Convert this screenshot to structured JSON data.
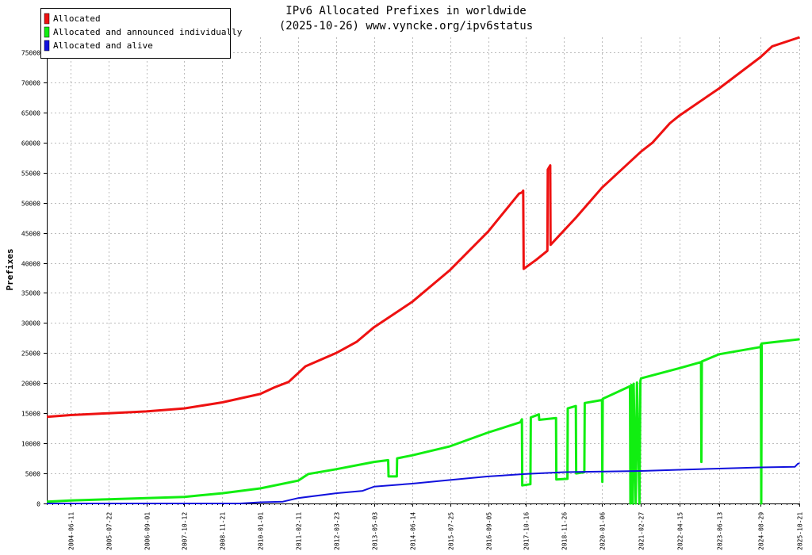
{
  "chart_data": {
    "type": "line",
    "title": "IPv6 Allocated Prefixes in worldwide",
    "subtitle": "(2025-10-26) www.vyncke.org/ipv6status",
    "xlabel": "",
    "ylabel": "Prefixes",
    "ylim": [
      0,
      77500
    ],
    "xlim": [
      "2003-10-01",
      "2025-10-26"
    ],
    "grid": true,
    "legend_position": "top-left",
    "y_ticks": [
      0,
      5000,
      10000,
      15000,
      20000,
      25000,
      30000,
      35000,
      40000,
      45000,
      50000,
      55000,
      60000,
      65000,
      70000,
      75000
    ],
    "x_ticks": [
      "2004-06-11",
      "2005-07-22",
      "2006-09-01",
      "2007-10-12",
      "2008-11-21",
      "2010-01-01",
      "2011-02-11",
      "2012-03-23",
      "2013-05-03",
      "2014-06-14",
      "2015-07-25",
      "2016-09-05",
      "2017-10-16",
      "2018-11-26",
      "2020-01-06",
      "2021-02-27",
      "2022-04-15",
      "2023-06-13",
      "2024-08-29",
      "2025-10-21"
    ],
    "series": [
      {
        "name": "Allocated",
        "color": "#ee1111",
        "points": [
          [
            "2003-10-01",
            14400
          ],
          [
            "2004-06-11",
            14700
          ],
          [
            "2005-07-22",
            15000
          ],
          [
            "2006-09-01",
            15300
          ],
          [
            "2007-10-12",
            15800
          ],
          [
            "2008-11-21",
            16800
          ],
          [
            "2010-01-01",
            18200
          ],
          [
            "2010-06-01",
            19300
          ],
          [
            "2010-11-01",
            20200
          ],
          [
            "2011-05-01",
            22800
          ],
          [
            "2012-03-23",
            25000
          ],
          [
            "2012-11-01",
            26900
          ],
          [
            "2013-05-03",
            29300
          ],
          [
            "2014-06-14",
            33500
          ],
          [
            "2015-07-25",
            38800
          ],
          [
            "2016-09-05",
            45200
          ],
          [
            "2017-08-01",
            51500
          ],
          [
            "2017-09-01",
            51700
          ],
          [
            "2017-09-15",
            52000
          ],
          [
            "2017-09-20",
            39000
          ],
          [
            "2018-02-01",
            40500
          ],
          [
            "2018-06-01",
            42000
          ],
          [
            "2018-06-05",
            55500
          ],
          [
            "2018-07-01",
            56200
          ],
          [
            "2018-07-05",
            43000
          ],
          [
            "2019-04-01",
            47500
          ],
          [
            "2020-01-06",
            52500
          ],
          [
            "2021-02-27",
            58500
          ],
          [
            "2021-07-01",
            60000
          ],
          [
            "2022-01-01",
            63200
          ],
          [
            "2022-04-15",
            64500
          ],
          [
            "2023-06-13",
            69000
          ],
          [
            "2024-08-29",
            74200
          ],
          [
            "2025-01-01",
            76000
          ],
          [
            "2025-10-21",
            77500
          ]
        ]
      },
      {
        "name": "Allocated and announced individually",
        "color": "#11ee11",
        "points": [
          [
            "2003-10-01",
            300
          ],
          [
            "2004-06-11",
            500
          ],
          [
            "2005-07-22",
            700
          ],
          [
            "2006-09-01",
            900
          ],
          [
            "2007-10-12",
            1100
          ],
          [
            "2008-11-21",
            1700
          ],
          [
            "2010-01-01",
            2500
          ],
          [
            "2011-02-11",
            3800
          ],
          [
            "2011-06-01",
            4900
          ],
          [
            "2012-03-23",
            5700
          ],
          [
            "2013-05-03",
            6900
          ],
          [
            "2013-10-01",
            7200
          ],
          [
            "2013-10-05",
            4500
          ],
          [
            "2014-01-01",
            4500
          ],
          [
            "2014-01-05",
            7500
          ],
          [
            "2014-06-14",
            8000
          ],
          [
            "2015-07-25",
            9500
          ],
          [
            "2016-09-05",
            11800
          ],
          [
            "2017-08-15",
            13500
          ],
          [
            "2017-09-01",
            14000
          ],
          [
            "2017-09-05",
            3000
          ],
          [
            "2017-12-01",
            3200
          ],
          [
            "2017-12-05",
            14300
          ],
          [
            "2018-03-01",
            14800
          ],
          [
            "2018-03-05",
            13900
          ],
          [
            "2018-09-01",
            14200
          ],
          [
            "2018-09-05",
            4000
          ],
          [
            "2019-01-01",
            4100
          ],
          [
            "2019-01-05",
            15800
          ],
          [
            "2019-04-01",
            16200
          ],
          [
            "2019-04-05",
            5000
          ],
          [
            "2019-07-01",
            5200
          ],
          [
            "2019-07-05",
            16700
          ],
          [
            "2020-01-06",
            17200
          ],
          [
            "2020-01-10",
            3600
          ],
          [
            "2020-01-14",
            17400
          ],
          [
            "2020-11-01",
            19500
          ],
          [
            "2020-11-05",
            0
          ],
          [
            "2020-11-15",
            19700
          ],
          [
            "2020-12-01",
            0
          ],
          [
            "2020-12-10",
            19900
          ],
          [
            "2021-01-01",
            0
          ],
          [
            "2021-01-15",
            20100
          ],
          [
            "2021-02-10",
            0
          ],
          [
            "2021-02-20",
            20400
          ],
          [
            "2021-02-27",
            20800
          ],
          [
            "2022-04-15",
            22500
          ],
          [
            "2022-12-01",
            23500
          ],
          [
            "2022-12-05",
            6900
          ],
          [
            "2022-12-10",
            23600
          ],
          [
            "2023-06-13",
            24800
          ],
          [
            "2024-08-29",
            26000
          ],
          [
            "2024-09-01",
            26400
          ],
          [
            "2024-09-05",
            0
          ],
          [
            "2024-09-10",
            26600
          ],
          [
            "2025-10-21",
            27300
          ]
        ]
      },
      {
        "name": "Allocated and alive",
        "color": "#1111dd",
        "points": [
          [
            "2003-10-01",
            0
          ],
          [
            "2009-06-01",
            0
          ],
          [
            "2010-01-01",
            200
          ],
          [
            "2010-09-01",
            300
          ],
          [
            "2011-02-11",
            900
          ],
          [
            "2012-03-23",
            1700
          ],
          [
            "2013-01-01",
            2100
          ],
          [
            "2013-05-03",
            2800
          ],
          [
            "2014-06-14",
            3300
          ],
          [
            "2015-07-25",
            3900
          ],
          [
            "2016-09-05",
            4500
          ],
          [
            "2017-10-16",
            4900
          ],
          [
            "2018-11-26",
            5200
          ],
          [
            "2020-01-06",
            5300
          ],
          [
            "2021-02-27",
            5400
          ],
          [
            "2022-04-15",
            5600
          ],
          [
            "2023-06-13",
            5800
          ],
          [
            "2024-08-29",
            6000
          ],
          [
            "2025-09-01",
            6100
          ],
          [
            "2025-10-01",
            6600
          ],
          [
            "2025-10-21",
            6700
          ]
        ]
      }
    ]
  }
}
